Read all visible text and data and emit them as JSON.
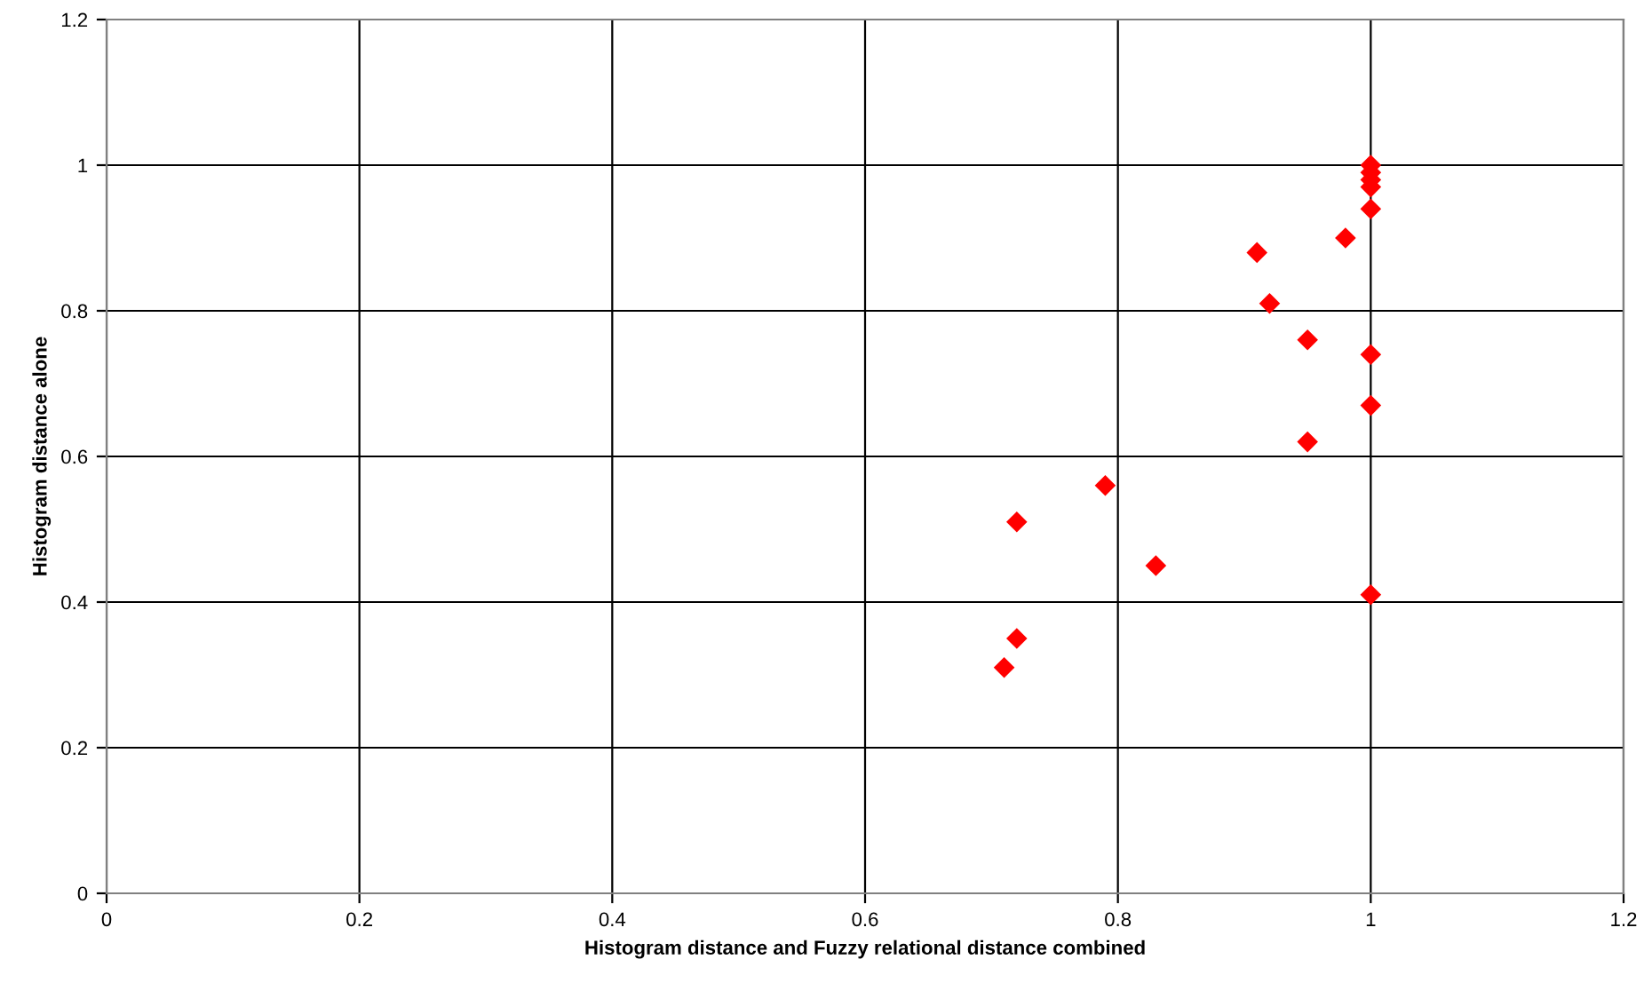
{
  "chart_data": {
    "type": "scatter",
    "xlabel": "Histogram distance and Fuzzy relational distance combined",
    "ylabel": "Histogram distance alone",
    "x": [
      0.71,
      0.72,
      0.72,
      0.79,
      0.83,
      0.91,
      0.92,
      0.95,
      0.95,
      0.98,
      1,
      1,
      1,
      1,
      1,
      1,
      1,
      1
    ],
    "series": [
      {
        "color": "#ff0000",
        "values": [
          0.31,
          0.35,
          0.51,
          0.56,
          0.45,
          0.88,
          0.81,
          0.76,
          0.62,
          0.9,
          1,
          0.99,
          0.98,
          0.97,
          0.94,
          0.74,
          0.67,
          0.41
        ]
      }
    ],
    "xlim": [
      0,
      1.2
    ],
    "xticks": [
      0,
      0.2,
      0.4,
      0.6,
      0.8,
      1,
      1.2
    ],
    "ylim": [
      0,
      1.2
    ],
    "yticks": [
      0,
      0.2,
      0.4,
      0.6,
      0.8,
      1,
      1.2
    ],
    "grid": true,
    "marker": "diamond"
  }
}
